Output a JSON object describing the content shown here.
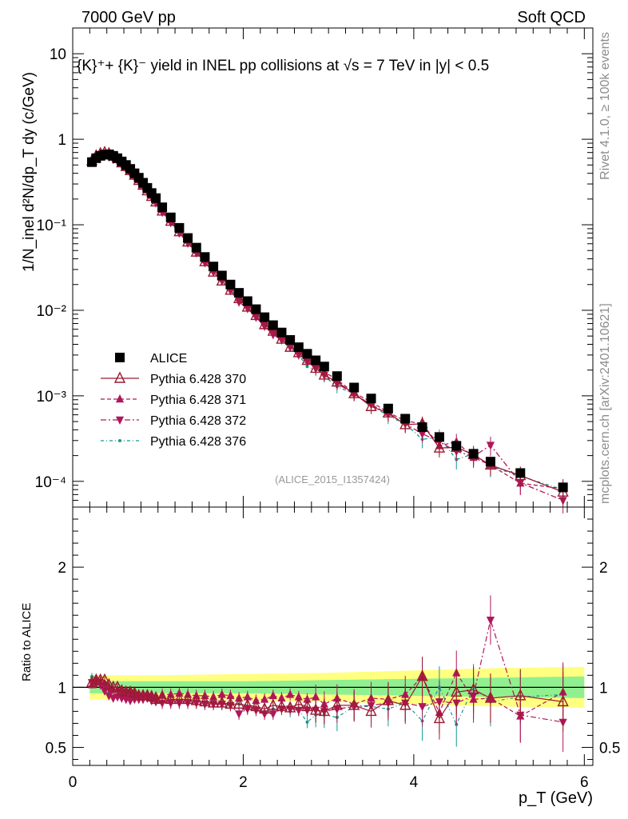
{
  "header": {
    "left": "7000 GeV pp",
    "right": "Soft QCD"
  },
  "title": "{K}⁺+ {K}⁻ yield in INEL pp collisions at √s = 7 TeV in |y| < 0.5",
  "side_labels": {
    "rivet": "Rivet 4.1.0, ≥ 100k events",
    "mcplots": "mcplots.cern.ch [arXiv:2401.10621]"
  },
  "analysis_id": "(ALICE_2015_I1357424)",
  "colors": {
    "data": "#000000",
    "mc370": "#9b1b30",
    "mc371": "#b0175a",
    "mc372": "#b0175a",
    "mc376": "#159a8f",
    "band_stat": "#90f090",
    "band_syst": "#ffff80"
  },
  "chart_data": [
    {
      "type": "scatter",
      "panel": "main",
      "title": "{K}⁺+ {K}⁻ yield in INEL pp collisions at √s = 7 TeV in |y| < 0.5",
      "xlabel": "p_T (GeV)",
      "ylabel": "1/N_inel d²N/dp_T dy (c/GeV)",
      "yscale": "log",
      "xlim": [
        0,
        6.1
      ],
      "ylim": [
        5e-05,
        20
      ],
      "x_ticks": [
        "0",
        "2",
        "4",
        "6"
      ],
      "y_ticks": [
        "10⁻⁴",
        "10⁻³",
        "10⁻²",
        "10⁻¹",
        "1",
        "10"
      ],
      "legend_position": "lower-left",
      "x": [
        0.225,
        0.275,
        0.325,
        0.375,
        0.425,
        0.475,
        0.525,
        0.575,
        0.625,
        0.675,
        0.725,
        0.775,
        0.825,
        0.875,
        0.925,
        0.975,
        1.05,
        1.15,
        1.25,
        1.35,
        1.45,
        1.55,
        1.65,
        1.75,
        1.85,
        1.95,
        2.05,
        2.15,
        2.25,
        2.35,
        2.45,
        2.55,
        2.65,
        2.75,
        2.85,
        2.95,
        3.1,
        3.3,
        3.5,
        3.7,
        3.9,
        4.1,
        4.3,
        4.5,
        4.7,
        4.9,
        5.25,
        5.75
      ],
      "series": [
        {
          "name": "ALICE",
          "marker": "filled-square",
          "values": [
            0.54,
            0.6,
            0.64,
            0.66,
            0.665,
            0.64,
            0.6,
            0.55,
            0.5,
            0.45,
            0.4,
            0.355,
            0.31,
            0.27,
            0.235,
            0.205,
            0.16,
            0.122,
            0.092,
            0.07,
            0.054,
            0.042,
            0.0325,
            0.0255,
            0.02,
            0.016,
            0.0128,
            0.0103,
            0.0083,
            0.0067,
            0.0055,
            0.0045,
            0.0037,
            0.0031,
            0.0026,
            0.0022,
            0.0017,
            0.00125,
            0.00093,
            0.00071,
            0.00054,
            0.00043,
            0.00033,
            0.00026,
            0.00021,
            0.00017,
            0.000125,
            8.5e-05
          ]
        },
        {
          "name": "Pythia 6.428 370",
          "marker": "open-triangle-up",
          "line": "solid",
          "values": [
            0.56,
            0.64,
            0.68,
            0.7,
            0.68,
            0.64,
            0.6,
            0.53,
            0.48,
            0.43,
            0.38,
            0.33,
            0.29,
            0.25,
            0.215,
            0.185,
            0.145,
            0.11,
            0.083,
            0.063,
            0.048,
            0.037,
            0.028,
            0.022,
            0.0172,
            0.0137,
            0.0109,
            0.0087,
            0.0068,
            0.0057,
            0.0046,
            0.0037,
            0.0032,
            0.0026,
            0.0021,
            0.00175,
            0.00145,
            0.00106,
            0.00075,
            0.00063,
            0.00046,
            0.00047,
            0.000245,
            0.00025,
            0.000205,
            0.000155,
            0.000117,
            7.5e-05
          ]
        },
        {
          "name": "Pythia 6.428 371",
          "marker": "filled-triangle-up",
          "line": "dashed",
          "values": [
            0.55,
            0.64,
            0.67,
            0.68,
            0.665,
            0.625,
            0.585,
            0.535,
            0.48,
            0.435,
            0.38,
            0.335,
            0.29,
            0.255,
            0.22,
            0.19,
            0.15,
            0.114,
            0.087,
            0.066,
            0.05,
            0.039,
            0.03,
            0.024,
            0.0185,
            0.0145,
            0.0118,
            0.0092,
            0.0075,
            0.0062,
            0.005,
            0.0042,
            0.0034,
            0.0028,
            0.0024,
            0.0019,
            0.00155,
            0.00108,
            0.00085,
            0.00064,
            0.00051,
            0.00047,
            0.00026,
            0.00029,
            0.00019,
            0.000155,
            9.5e-05,
            8.2e-05
          ]
        },
        {
          "name": "Pythia 6.428 372",
          "marker": "filled-triangle-down",
          "line": "dashed-dot",
          "values": [
            0.56,
            0.62,
            0.65,
            0.64,
            0.62,
            0.58,
            0.55,
            0.5,
            0.45,
            0.4,
            0.36,
            0.32,
            0.28,
            0.245,
            0.21,
            0.18,
            0.14,
            0.106,
            0.08,
            0.061,
            0.047,
            0.036,
            0.028,
            0.022,
            0.017,
            0.0125,
            0.0105,
            0.0083,
            0.0065,
            0.0052,
            0.0045,
            0.0037,
            0.003,
            0.0025,
            0.0021,
            0.00175,
            0.0014,
            0.00105,
            0.00079,
            0.00062,
            0.00047,
            0.00036,
            0.00029,
            0.000225,
            0.000195,
            0.000265,
            9.6e-05,
            6e-05
          ]
        },
        {
          "name": "Pythia 6.428 376",
          "marker": "small-star",
          "line": "dash-dot",
          "values": [
            0.59,
            0.65,
            0.68,
            0.66,
            0.63,
            0.59,
            0.55,
            0.5,
            0.46,
            0.41,
            0.36,
            0.32,
            0.28,
            0.245,
            0.21,
            0.18,
            0.14,
            0.107,
            0.081,
            0.062,
            0.047,
            0.037,
            0.028,
            0.022,
            0.0172,
            0.0137,
            0.0106,
            0.0085,
            0.0066,
            0.0055,
            0.0045,
            0.0036,
            0.003,
            0.0022,
            0.002,
            0.0017,
            0.00128,
            0.00105,
            0.00078,
            0.00058,
            0.00047,
            0.00031,
            0.00033,
            0.00018,
            0.00021,
            0.00015,
            0.000115,
            8e-05
          ]
        }
      ]
    },
    {
      "type": "scatter",
      "panel": "ratio",
      "xlabel": "p_T (GeV)",
      "ylabel": "Ratio to ALICE",
      "xlim": [
        0,
        6.1
      ],
      "ylim": [
        0.35,
        2.5
      ],
      "x_ticks": [
        "0",
        "2",
        "4",
        "6"
      ],
      "y_ticks": [
        "0.5",
        "1",
        "2"
      ],
      "reference_line": 1,
      "band_stat_halfwidth_at": {
        "x": [
          0.2,
          1.0,
          2.0,
          3.0,
          4.0,
          5.0,
          6.0
        ],
        "values": [
          0.05,
          0.05,
          0.05,
          0.06,
          0.07,
          0.08,
          0.09
        ]
      },
      "band_syst_halfwidth_at": {
        "x": [
          0.2,
          1.0,
          2.0,
          3.0,
          4.0,
          5.0,
          6.0
        ],
        "values": [
          0.1,
          0.1,
          0.11,
          0.12,
          0.14,
          0.16,
          0.17
        ]
      },
      "series": [
        {
          "name": "Pythia 6.428 370",
          "values": [
            1.04,
            1.06,
            1.06,
            1.06,
            1.02,
            1.0,
            1.0,
            0.97,
            0.96,
            0.96,
            0.95,
            0.93,
            0.93,
            0.93,
            0.92,
            0.9,
            0.91,
            0.9,
            0.9,
            0.9,
            0.89,
            0.88,
            0.87,
            0.87,
            0.86,
            0.86,
            0.85,
            0.84,
            0.82,
            0.85,
            0.84,
            0.83,
            0.86,
            0.84,
            0.81,
            0.8,
            0.85,
            0.85,
            0.8,
            0.89,
            0.85,
            1.09,
            0.74,
            0.96,
            0.98,
            0.91,
            0.93,
            0.88
          ]
        },
        {
          "name": "Pythia 6.428 371",
          "values": [
            1.02,
            1.07,
            1.05,
            1.03,
            1.0,
            0.98,
            0.98,
            0.97,
            0.96,
            0.97,
            0.95,
            0.94,
            0.94,
            0.94,
            0.94,
            0.93,
            0.94,
            0.94,
            0.95,
            0.94,
            0.93,
            0.93,
            0.92,
            0.94,
            0.93,
            0.91,
            0.92,
            0.89,
            0.9,
            0.93,
            0.91,
            0.94,
            0.92,
            0.9,
            0.92,
            0.86,
            0.91,
            0.86,
            0.91,
            0.9,
            0.94,
            1.09,
            0.79,
            1.12,
            0.9,
            0.91,
            0.76,
            0.96
          ]
        },
        {
          "name": "Pythia 6.428 372",
          "values": [
            1.04,
            1.03,
            1.02,
            0.97,
            0.93,
            0.91,
            0.92,
            0.91,
            0.9,
            0.89,
            0.9,
            0.9,
            0.9,
            0.91,
            0.89,
            0.88,
            0.87,
            0.87,
            0.87,
            0.87,
            0.87,
            0.86,
            0.86,
            0.86,
            0.85,
            0.78,
            0.82,
            0.81,
            0.78,
            0.78,
            0.82,
            0.82,
            0.81,
            0.81,
            0.81,
            0.8,
            0.82,
            0.84,
            0.85,
            0.87,
            0.87,
            0.84,
            0.88,
            0.87,
            0.93,
            1.56,
            0.77,
            0.71
          ]
        },
        {
          "name": "Pythia 6.428 376",
          "values": [
            1.09,
            1.08,
            1.06,
            1.0,
            0.95,
            0.92,
            0.92,
            0.91,
            0.92,
            0.91,
            0.9,
            0.9,
            0.9,
            0.91,
            0.89,
            0.88,
            0.88,
            0.88,
            0.88,
            0.89,
            0.87,
            0.88,
            0.86,
            0.86,
            0.86,
            0.86,
            0.83,
            0.83,
            0.8,
            0.82,
            0.82,
            0.8,
            0.81,
            0.71,
            0.77,
            0.77,
            0.75,
            0.84,
            0.84,
            0.82,
            0.87,
            0.72,
            1.0,
            0.69,
            1.0,
            0.88,
            0.92,
            0.94
          ]
        }
      ]
    }
  ]
}
